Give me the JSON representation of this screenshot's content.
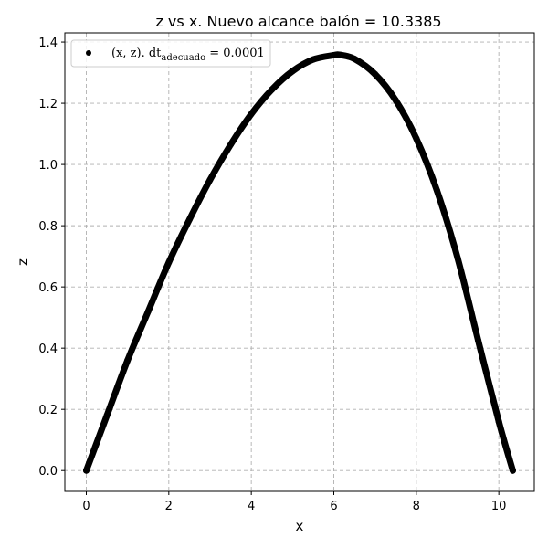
{
  "chart_data": {
    "type": "scatter",
    "title": "z vs x. Nuevo alcance balón = 10.3385",
    "xlabel": "x",
    "ylabel": "z",
    "xlim": [
      -0.52,
      10.86
    ],
    "ylim": [
      -0.068,
      1.43
    ],
    "xticks": [
      0,
      2,
      4,
      6,
      8,
      10
    ],
    "yticks": [
      0.0,
      0.2,
      0.4,
      0.6,
      0.8,
      1.0,
      1.2,
      1.4
    ],
    "xtick_labels": [
      "0",
      "2",
      "4",
      "6",
      "8",
      "10"
    ],
    "ytick_labels": [
      "0.0",
      "0.2",
      "0.4",
      "0.6",
      "0.8",
      "1.0",
      "1.2",
      "1.4"
    ],
    "grid": true,
    "legend_placement": "upper-left",
    "series": [
      {
        "name": "(x, z). dt_adecuado = 0.0001",
        "legend_main": "(x, z). dt",
        "legend_sub": "adecuado",
        "legend_tail": " = 0.0001",
        "color": "#000000",
        "x": [
          0,
          0.5,
          1.0,
          1.5,
          2.0,
          2.5,
          3.0,
          3.5,
          4.0,
          4.5,
          5.0,
          5.5,
          6.0,
          6.15,
          6.5,
          7.0,
          7.5,
          8.0,
          8.5,
          9.0,
          9.5,
          10.0,
          10.3385
        ],
        "y": [
          0,
          0.18,
          0.36,
          0.52,
          0.68,
          0.82,
          0.95,
          1.065,
          1.165,
          1.245,
          1.305,
          1.343,
          1.357,
          1.358,
          1.345,
          1.295,
          1.21,
          1.085,
          0.915,
          0.695,
          0.425,
          0.16,
          0.0
        ]
      }
    ]
  }
}
